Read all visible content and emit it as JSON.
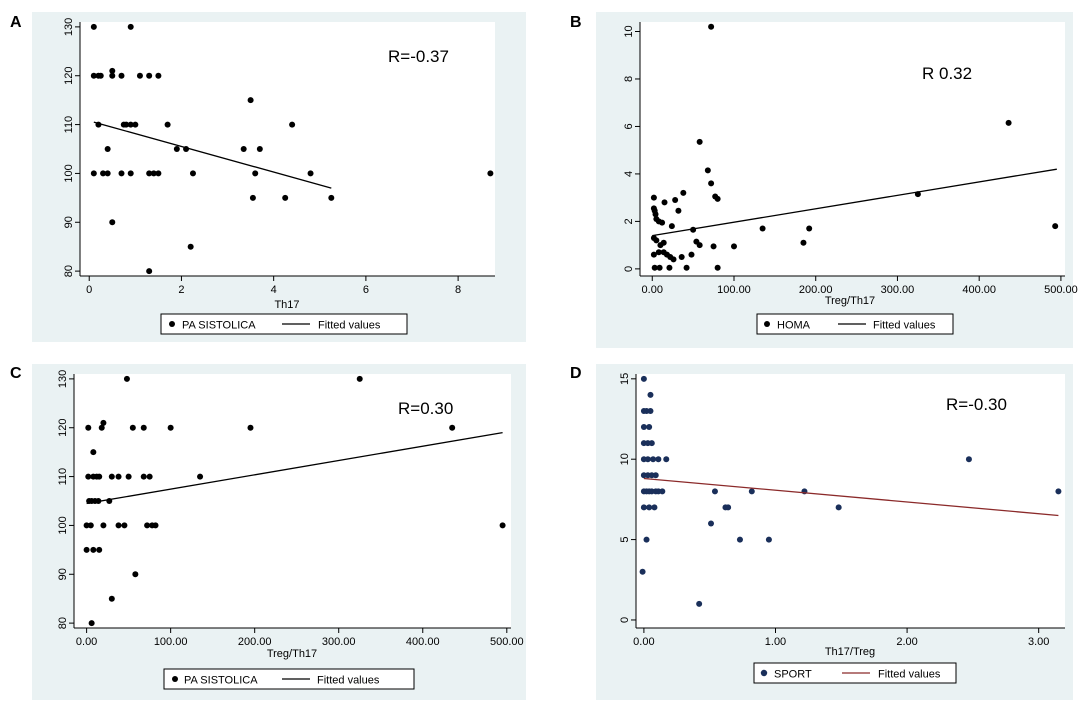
{
  "panels": [
    {
      "letter": "A",
      "r_text": "R=-0.37",
      "legend_marker_label": "PA SISTOLICA",
      "legend_line_label": "Fitted values",
      "colors": {
        "marker": "#000000",
        "line": "#000000"
      }
    },
    {
      "letter": "B",
      "r_text": "R 0.32",
      "legend_marker_label": "HOMA",
      "legend_line_label": "Fitted values",
      "colors": {
        "marker": "#000000",
        "line": "#000000"
      }
    },
    {
      "letter": "C",
      "r_text": "R=0.30",
      "legend_marker_label": "PA SISTOLICA",
      "legend_line_label": "Fitted values",
      "colors": {
        "marker": "#000000",
        "line": "#000000"
      }
    },
    {
      "letter": "D",
      "r_text": "R=-0.30",
      "legend_marker_label": "SPORT",
      "legend_line_label": "Fitted values",
      "colors": {
        "marker": "#1a2f5a",
        "line": "#8b2a2a"
      }
    }
  ],
  "chart_data": [
    {
      "type": "scatter",
      "xlabel": "Th17",
      "ylabel": "",
      "xlim": [
        -0.2,
        8.8
      ],
      "ylim": [
        79,
        131
      ],
      "xticks": [
        0,
        2,
        4,
        6,
        8
      ],
      "xtick_labels": [
        "0",
        "2",
        "4",
        "6",
        "8"
      ],
      "yticks": [
        80,
        90,
        100,
        110,
        120,
        130
      ],
      "ytick_labels": [
        "80",
        "90",
        "100",
        "110",
        "120",
        "130"
      ],
      "series": [
        {
          "name": "PA SISTOLICA",
          "points": [
            [
              0.1,
              130
            ],
            [
              0.9,
              130
            ],
            [
              0.1,
              120
            ],
            [
              0.2,
              120
            ],
            [
              0.25,
              120
            ],
            [
              0.5,
              121
            ],
            [
              0.5,
              120
            ],
            [
              0.7,
              120
            ],
            [
              1.1,
              120
            ],
            [
              1.3,
              120
            ],
            [
              1.5,
              120
            ],
            [
              0.2,
              110
            ],
            [
              0.75,
              110
            ],
            [
              0.8,
              110
            ],
            [
              0.9,
              110
            ],
            [
              1.0,
              110
            ],
            [
              1.7,
              110
            ],
            [
              4.4,
              110
            ],
            [
              0.4,
              105
            ],
            [
              1.9,
              105
            ],
            [
              2.1,
              105
            ],
            [
              3.35,
              105
            ],
            [
              3.7,
              105
            ],
            [
              3.5,
              115
            ],
            [
              0.1,
              100
            ],
            [
              0.3,
              100
            ],
            [
              0.4,
              100
            ],
            [
              0.7,
              100
            ],
            [
              0.9,
              100
            ],
            [
              1.3,
              100
            ],
            [
              1.4,
              100
            ],
            [
              1.5,
              100
            ],
            [
              2.25,
              100
            ],
            [
              3.6,
              100
            ],
            [
              4.8,
              100
            ],
            [
              8.7,
              100
            ],
            [
              0.5,
              90
            ],
            [
              3.55,
              95
            ],
            [
              4.25,
              95
            ],
            [
              5.25,
              95
            ],
            [
              2.2,
              85
            ],
            [
              1.3,
              80
            ]
          ]
        },
        {
          "name": "Fitted values",
          "line": [
            [
              0.1,
              110.5
            ],
            [
              5.25,
              97.0
            ]
          ]
        }
      ]
    },
    {
      "type": "scatter",
      "xlabel": "Treg/Th17",
      "ylabel": "",
      "xlim": [
        -15,
        505
      ],
      "ylim": [
        -0.3,
        10.4
      ],
      "xticks": [
        0,
        100,
        200,
        300,
        400,
        500
      ],
      "xtick_labels": [
        "0.00",
        "100.00",
        "200.00",
        "300.00",
        "400.00",
        "500.00"
      ],
      "yticks": [
        0,
        2,
        4,
        6,
        8,
        10
      ],
      "ytick_labels": [
        "0",
        "2",
        "4",
        "6",
        "8",
        "10"
      ],
      "series": [
        {
          "name": "HOMA",
          "points": [
            [
              72,
              10.2
            ],
            [
              436,
              6.15
            ],
            [
              58,
              5.35
            ],
            [
              68,
              4.15
            ],
            [
              72,
              3.6
            ],
            [
              77,
              3.05
            ],
            [
              80,
              2.95
            ],
            [
              38,
              3.2
            ],
            [
              2,
              3.0
            ],
            [
              28,
              2.9
            ],
            [
              15,
              2.8
            ],
            [
              2,
              2.55
            ],
            [
              3,
              2.45
            ],
            [
              4,
              2.3
            ],
            [
              5,
              2.1
            ],
            [
              8,
              2.0
            ],
            [
              12,
              1.95
            ],
            [
              32,
              2.45
            ],
            [
              2,
              1.3
            ],
            [
              5,
              1.2
            ],
            [
              10,
              1.0
            ],
            [
              14,
              1.1
            ],
            [
              24,
              1.8
            ],
            [
              50,
              1.65
            ],
            [
              54,
              1.15
            ],
            [
              58,
              1.0
            ],
            [
              75,
              0.95
            ],
            [
              100,
              0.95
            ],
            [
              135,
              1.7
            ],
            [
              185,
              1.1
            ],
            [
              192,
              1.7
            ],
            [
              325,
              3.15
            ],
            [
              493,
              1.8
            ],
            [
              2,
              0.6
            ],
            [
              8,
              0.7
            ],
            [
              14,
              0.7
            ],
            [
              18,
              0.6
            ],
            [
              22,
              0.5
            ],
            [
              26,
              0.4
            ],
            [
              36,
              0.5
            ],
            [
              48,
              0.6
            ],
            [
              3,
              0.05
            ],
            [
              9,
              0.05
            ],
            [
              21,
              0.05
            ],
            [
              42,
              0.05
            ],
            [
              80,
              0.05
            ]
          ]
        },
        {
          "name": "Fitted values",
          "line": [
            [
              0,
              1.4
            ],
            [
              495,
              4.2
            ]
          ]
        }
      ]
    },
    {
      "type": "scatter",
      "xlabel": "Treg/Th17",
      "ylabel": "",
      "xlim": [
        -15,
        505
      ],
      "ylim": [
        79,
        131
      ],
      "xticks": [
        0,
        100,
        200,
        300,
        400,
        500
      ],
      "xtick_labels": [
        "0.00",
        "100.00",
        "200.00",
        "300.00",
        "400.00",
        "500.00"
      ],
      "yticks": [
        80,
        90,
        100,
        110,
        120,
        130
      ],
      "ytick_labels": [
        "80",
        "90",
        "100",
        "110",
        "120",
        "130"
      ],
      "series": [
        {
          "name": "PA SISTOLICA",
          "points": [
            [
              48,
              130
            ],
            [
              325,
              130
            ],
            [
              2,
              120
            ],
            [
              18,
              120
            ],
            [
              20,
              121
            ],
            [
              55,
              120
            ],
            [
              68,
              120
            ],
            [
              100,
              120
            ],
            [
              195,
              120
            ],
            [
              435,
              120
            ],
            [
              8,
              115
            ],
            [
              2,
              110
            ],
            [
              8,
              110
            ],
            [
              12,
              110
            ],
            [
              15,
              110
            ],
            [
              30,
              110
            ],
            [
              38,
              110
            ],
            [
              50,
              110
            ],
            [
              68,
              110
            ],
            [
              75,
              110
            ],
            [
              135,
              110
            ],
            [
              3,
              105
            ],
            [
              6,
              105
            ],
            [
              10,
              105
            ],
            [
              14,
              105
            ],
            [
              27,
              105
            ],
            [
              0,
              100
            ],
            [
              5,
              100
            ],
            [
              20,
              100
            ],
            [
              38,
              100
            ],
            [
              45,
              100
            ],
            [
              72,
              100
            ],
            [
              78,
              100
            ],
            [
              82,
              100
            ],
            [
              495,
              100
            ],
            [
              0,
              95
            ],
            [
              8,
              95
            ],
            [
              15,
              95
            ],
            [
              58,
              90
            ],
            [
              30,
              85
            ],
            [
              6,
              80
            ]
          ]
        },
        {
          "name": "Fitted values",
          "line": [
            [
              0,
              104.5
            ],
            [
              495,
              119.0
            ]
          ]
        }
      ]
    },
    {
      "type": "scatter",
      "xlabel": "Th17/Treg",
      "ylabel": "",
      "xlim": [
        -0.06,
        3.2
      ],
      "ylim": [
        -0.5,
        15.3
      ],
      "xticks": [
        0,
        1,
        2,
        3
      ],
      "xtick_labels": [
        "0.00",
        "1.00",
        "2.00",
        "3.00"
      ],
      "yticks": [
        0,
        5,
        10,
        15
      ],
      "ytick_labels": [
        "0",
        "5",
        "10",
        "15"
      ],
      "series": [
        {
          "name": "SPORT",
          "points": [
            [
              0.0,
              15
            ],
            [
              0.05,
              14
            ],
            [
              0.0,
              13
            ],
            [
              0.02,
              13
            ],
            [
              0.05,
              13
            ],
            [
              0.0,
              12
            ],
            [
              0.04,
              12
            ],
            [
              0.0,
              11
            ],
            [
              0.03,
              11
            ],
            [
              0.06,
              11
            ],
            [
              0.0,
              10
            ],
            [
              0.03,
              10
            ],
            [
              0.07,
              10
            ],
            [
              0.11,
              10
            ],
            [
              0.17,
              10
            ],
            [
              2.47,
              10
            ],
            [
              0.0,
              9
            ],
            [
              0.03,
              9
            ],
            [
              0.06,
              9
            ],
            [
              0.09,
              9
            ],
            [
              0.0,
              8
            ],
            [
              0.02,
              8
            ],
            [
              0.04,
              8
            ],
            [
              0.06,
              8
            ],
            [
              0.09,
              8
            ],
            [
              0.11,
              8
            ],
            [
              0.14,
              8
            ],
            [
              0.54,
              8
            ],
            [
              0.82,
              8
            ],
            [
              1.22,
              8
            ],
            [
              3.15,
              8
            ],
            [
              0.0,
              7
            ],
            [
              0.04,
              7
            ],
            [
              0.08,
              7
            ],
            [
              0.62,
              7
            ],
            [
              0.64,
              7
            ],
            [
              1.48,
              7
            ],
            [
              0.51,
              6
            ],
            [
              0.02,
              5
            ],
            [
              0.73,
              5
            ],
            [
              0.95,
              5
            ],
            [
              -0.01,
              3
            ],
            [
              0.42,
              1
            ]
          ]
        },
        {
          "name": "Fitted values",
          "line": [
            [
              0.0,
              8.8
            ],
            [
              3.15,
              6.5
            ]
          ]
        }
      ]
    }
  ]
}
